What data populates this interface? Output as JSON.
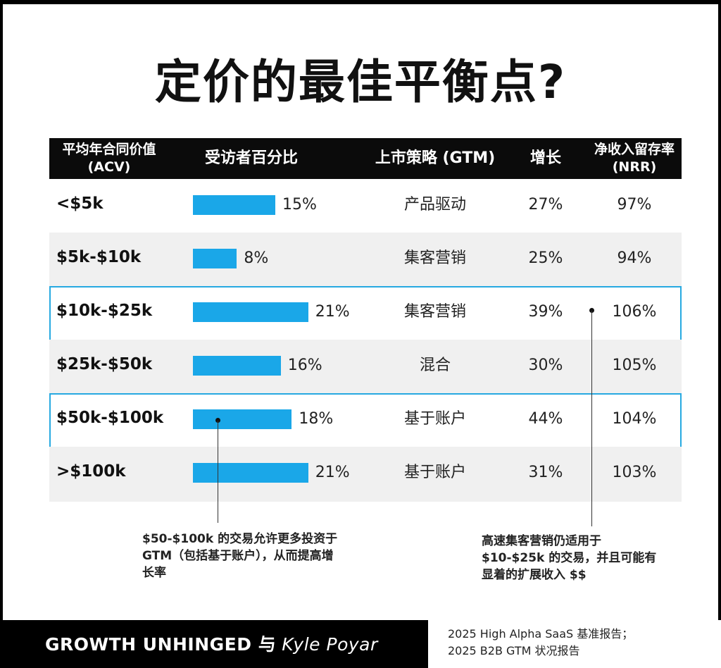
{
  "title": "定价的最佳平衡点?",
  "chart_data": {
    "type": "table",
    "columns": [
      "平均年合同价值\n(ACV)",
      "受访者百分比",
      "上市策略 (GTM)",
      "增长",
      "净收入留存率\n(NRR)"
    ],
    "rows": [
      {
        "acv": "<$5k",
        "pct_label": "15%",
        "pct": 15,
        "gtm": "产品驱动",
        "growth": "27%",
        "nrr": "97%"
      },
      {
        "acv": "$5k-$10k",
        "pct_label": "8%",
        "pct": 8,
        "gtm": "集客营销",
        "growth": "25%",
        "nrr": "94%"
      },
      {
        "acv": "$10k-$25k",
        "pct_label": "21%",
        "pct": 21,
        "gtm": "集客营销",
        "growth": "39%",
        "nrr": "106%"
      },
      {
        "acv": "$25k-$50k",
        "pct_label": "16%",
        "pct": 16,
        "gtm": "混合",
        "growth": "30%",
        "nrr": "105%"
      },
      {
        "acv": "$50k-$100k",
        "pct_label": "18%",
        "pct": 18,
        "gtm": "基于账户",
        "growth": "44%",
        "nrr": "104%"
      },
      {
        "acv": ">$100k",
        "pct_label": "21%",
        "pct": 21,
        "gtm": "基于账户",
        "growth": "31%",
        "nrr": "103%"
      }
    ],
    "highlighted_rows": [
      "$10k-$25k",
      "$50k-$100k"
    ],
    "accent_color": "#1aa7e8",
    "highlight_border_color": "#27a9e1"
  },
  "annotations": {
    "left": "$50-$100k 的交易允许更多投资于\nGTM（包括基于账户），从而提高增\n长率",
    "right": "高速集客营销仍适用于\n$10-$25k 的交易，并且可能有\n显着的扩展收入 $$"
  },
  "footer": {
    "brand": "GROWTH UNHINGED 与",
    "author": "Kyle Poyar",
    "source": "2025 High Alpha SaaS 基准报告；\n2025 B2B GTM 状况报告"
  }
}
